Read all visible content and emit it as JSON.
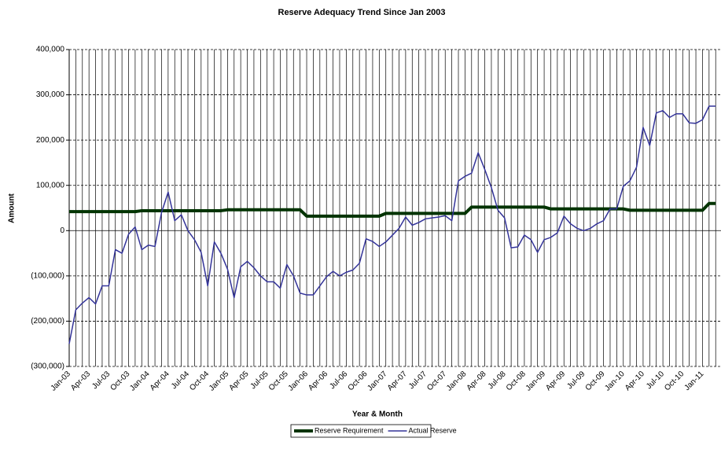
{
  "chart_data": {
    "type": "line",
    "title": "Reserve Adequacy Trend Since Jan 2003",
    "xlabel": "Year & Month",
    "ylabel": "Amount",
    "categories": [
      "Jan-03",
      null,
      null,
      "Apr-03",
      null,
      null,
      "Jul-03",
      null,
      null,
      "Oct-03",
      null,
      null,
      "Jan-04",
      null,
      null,
      "Apr-04",
      null,
      null,
      "Jul-04",
      null,
      null,
      "Oct-04",
      null,
      null,
      "Jan-05",
      null,
      null,
      "Apr-05",
      null,
      null,
      "Jul-05",
      null,
      null,
      "Oct-05",
      null,
      null,
      "Jan-06",
      null,
      null,
      "Apr-06",
      null,
      null,
      "Jul-06",
      null,
      null,
      "Oct-06",
      null,
      null,
      "Jan-07",
      null,
      null,
      "Apr-07",
      null,
      null,
      "Jul-07",
      null,
      null,
      "Oct-07",
      null,
      null,
      "Jan-08",
      null,
      null,
      "Apr-08",
      null,
      null,
      "Jul-08",
      null,
      null,
      "Oct-08",
      null,
      null,
      "Jan-09",
      null,
      null,
      "Apr-09",
      null,
      null,
      "Jul-09",
      null,
      null,
      "Oct-09",
      null,
      null,
      "Jan-10",
      null,
      null,
      "Apr-10",
      null,
      null,
      "Jul-10",
      null,
      null,
      "Oct-10",
      null,
      null,
      "Jan-11",
      null,
      null
    ],
    "series": [
      {
        "name": "Reserve Requirement",
        "color": "#003300",
        "width": 4,
        "values": [
          42000,
          42000,
          42000,
          42000,
          42000,
          42000,
          42000,
          42000,
          42000,
          42000,
          42000,
          44000,
          44000,
          44000,
          44000,
          44000,
          44000,
          44000,
          44000,
          44000,
          44000,
          44000,
          44000,
          44000,
          46000,
          46000,
          46000,
          46000,
          46000,
          46000,
          46000,
          46000,
          46000,
          46000,
          46000,
          46000,
          32000,
          32000,
          32000,
          32000,
          32000,
          32000,
          32000,
          32000,
          32000,
          32000,
          32000,
          32000,
          38000,
          38000,
          38000,
          38000,
          38000,
          38000,
          38000,
          38000,
          38000,
          38000,
          38000,
          38000,
          38000,
          52000,
          52000,
          52000,
          52000,
          52000,
          52000,
          52000,
          52000,
          52000,
          52000,
          52000,
          52000,
          48000,
          48000,
          48000,
          48000,
          48000,
          48000,
          48000,
          48000,
          48000,
          48000,
          48000,
          48000,
          45000,
          45000,
          45000,
          45000,
          45000,
          45000,
          45000,
          45000,
          45000,
          45000,
          45000,
          45000,
          60000,
          60000
        ]
      },
      {
        "name": "Actual Reserve",
        "color": "#333399",
        "width": 1.5,
        "values": [
          -250000,
          -175000,
          -160000,
          -148000,
          -162000,
          -122000,
          -122000,
          -42000,
          -50000,
          -8000,
          8000,
          -42000,
          -32000,
          -35000,
          40000,
          85000,
          22000,
          35000,
          0,
          -20000,
          -48000,
          -122000,
          -25000,
          -50000,
          -85000,
          -148000,
          -80000,
          -68000,
          -82000,
          -100000,
          -113000,
          -113000,
          -127000,
          -75000,
          -100000,
          -138000,
          -142000,
          -142000,
          -122000,
          -102000,
          -90000,
          -100000,
          -92000,
          -87000,
          -72000,
          -18000,
          -24000,
          -35000,
          -25000,
          -10000,
          5000,
          30000,
          12000,
          18000,
          26000,
          28000,
          30000,
          33000,
          22000,
          110000,
          120000,
          127000,
          172000,
          135000,
          95000,
          45000,
          28000,
          -38000,
          -36000,
          -10000,
          -20000,
          -48000,
          -20000,
          -15000,
          -5000,
          32000,
          15000,
          5000,
          0,
          5000,
          15000,
          22000,
          48000,
          48000,
          98000,
          110000,
          140000,
          228000,
          188000,
          260000,
          265000,
          250000,
          258000,
          258000,
          238000,
          237000,
          245000,
          275000,
          275000
        ]
      }
    ],
    "ylim": [
      -300000,
      400000
    ],
    "yticks": [
      {
        "value": -300000,
        "label": "(300,000)"
      },
      {
        "value": -200000,
        "label": "(200,000)"
      },
      {
        "value": -100000,
        "label": "(100,000)"
      },
      0,
      {
        "value": 100000,
        "label": "100,000"
      },
      {
        "value": 200000,
        "label": "200,000"
      },
      {
        "value": 300000,
        "label": "300,000"
      },
      {
        "value": 400000,
        "label": "400,000"
      }
    ],
    "negative_label_color": "#ff0000",
    "grid": true,
    "legend": "bottom"
  }
}
